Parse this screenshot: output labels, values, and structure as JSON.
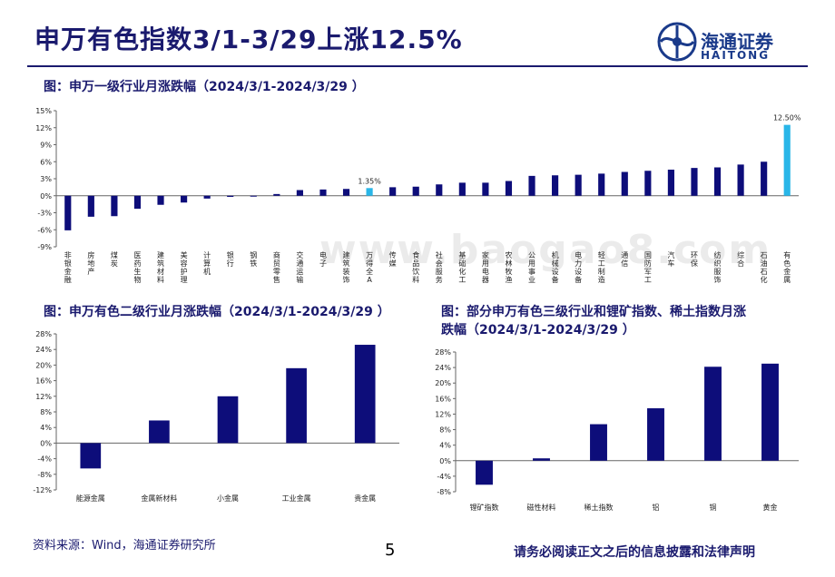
{
  "header": {
    "title": "申万有色指数3/1-3/29上涨12.5%",
    "logo_cn": "海通证券",
    "logo_en": "HAITONG",
    "accent_color": "#1a1a6e"
  },
  "captions": {
    "top": "图：申万一级行业月涨跌幅（2024/3/1-2024/3/29 ）",
    "bottom_left": "图：申万有色二级行业月涨跌幅（2024/3/1-2024/3/29 ）",
    "bottom_right_line1": "图：部分申万有色三级行业和锂矿指数、稀土指数月涨",
    "bottom_right_line2": "跌幅（2024/3/1-2024/3/29 ）"
  },
  "footer": {
    "source": "资料来源：Wind，海通证券研究所",
    "page": "5",
    "disclaimer": "请务必阅读正文之后的信息披露和法律声明"
  },
  "watermark": "www.baogao8.com",
  "chart_data": [
    {
      "type": "bar",
      "categories": [
        "非银金融",
        "房地产",
        "煤炭",
        "医药生物",
        "建筑材料",
        "美容护理",
        "计算机",
        "银行",
        "钢铁",
        "商贸零售",
        "交通运输",
        "电子",
        "建筑装饰",
        "万得全A",
        "传媒",
        "食品饮料",
        "社会服务",
        "基础化工",
        "家用电器",
        "农林牧渔",
        "公用事业",
        "机械设备",
        "电力设备",
        "轻工制造",
        "通信",
        "国防军工",
        "汽车",
        "环保",
        "纺织服饰",
        "综合",
        "石油石化",
        "有色金属"
      ],
      "values": [
        -6.1,
        -3.7,
        -3.6,
        -2.3,
        -1.6,
        -1.2,
        -0.5,
        -0.2,
        -0.1,
        0.3,
        1.0,
        1.1,
        1.2,
        1.35,
        1.5,
        1.6,
        2.0,
        2.3,
        2.3,
        2.6,
        3.5,
        3.6,
        3.7,
        3.9,
        4.2,
        4.4,
        4.6,
        4.9,
        5.0,
        5.5,
        6.0,
        12.5
      ],
      "highlight": [
        "万得全A",
        "有色金属"
      ],
      "data_labels": {
        "万得全A": "1.35%",
        "有色金属": "12.50%"
      },
      "ylim": [
        -9,
        15
      ],
      "yticks": [
        -9,
        -6,
        -3,
        0,
        3,
        6,
        9,
        12,
        15
      ],
      "bar_color": "#0d0d7a",
      "highlight_color": "#29b6e8"
    },
    {
      "type": "bar",
      "categories": [
        "能源金属",
        "金属新材料",
        "小金属",
        "工业金属",
        "贵金属"
      ],
      "values": [
        -6.5,
        5.8,
        12.0,
        19.2,
        25.2
      ],
      "ylim": [
        -12,
        28
      ],
      "yticks": [
        -12,
        -8,
        -4,
        0,
        4,
        8,
        12,
        16,
        20,
        24,
        28
      ],
      "bar_color": "#0d0d7a"
    },
    {
      "type": "bar",
      "categories": [
        "锂矿指数",
        "磁性材料",
        "稀土指数",
        "铝",
        "铜",
        "黄金"
      ],
      "values": [
        -6.2,
        0.6,
        9.4,
        13.5,
        24.2,
        25.0
      ],
      "ylim": [
        -8,
        28
      ],
      "yticks": [
        -8,
        -4,
        0,
        4,
        8,
        12,
        16,
        20,
        24,
        28
      ],
      "bar_color": "#0d0d7a"
    }
  ]
}
